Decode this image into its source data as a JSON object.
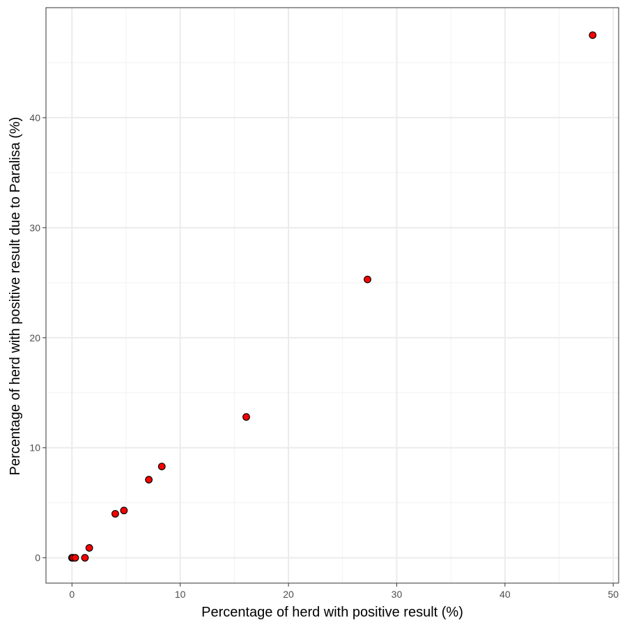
{
  "chart_data": {
    "type": "scatter",
    "xlabel": "Percentage of herd with positive result (%)",
    "ylabel": "Percentage of herd with positive result due to Paralisa (%)",
    "xlim": [
      -2.4,
      50.5
    ],
    "ylim": [
      -2.3,
      50
    ],
    "x_ticks": [
      0,
      10,
      20,
      30,
      40,
      50
    ],
    "y_ticks": [
      0,
      10,
      20,
      30,
      40
    ],
    "x_minor": [
      5,
      15,
      25,
      35,
      45
    ],
    "y_minor": [
      5,
      15,
      25,
      35,
      45
    ],
    "grid": true,
    "legend": "none",
    "colors": {
      "point_fill": "#ff0000",
      "point_stroke": "#000000",
      "grid_major": "#ebebeb",
      "grid_minor": "#f2f2f2",
      "panel_border": "#333333"
    },
    "points": [
      {
        "x": 0.0,
        "y": 0.0
      },
      {
        "x": 0.1,
        "y": 0.0
      },
      {
        "x": 0.3,
        "y": 0.0
      },
      {
        "x": 1.2,
        "y": 0.0
      },
      {
        "x": 1.6,
        "y": 0.9
      },
      {
        "x": 4.0,
        "y": 4.0
      },
      {
        "x": 4.8,
        "y": 4.3
      },
      {
        "x": 7.1,
        "y": 7.1
      },
      {
        "x": 8.3,
        "y": 8.3
      },
      {
        "x": 16.1,
        "y": 12.8
      },
      {
        "x": 27.3,
        "y": 25.3
      },
      {
        "x": 48.1,
        "y": 47.5
      }
    ]
  }
}
